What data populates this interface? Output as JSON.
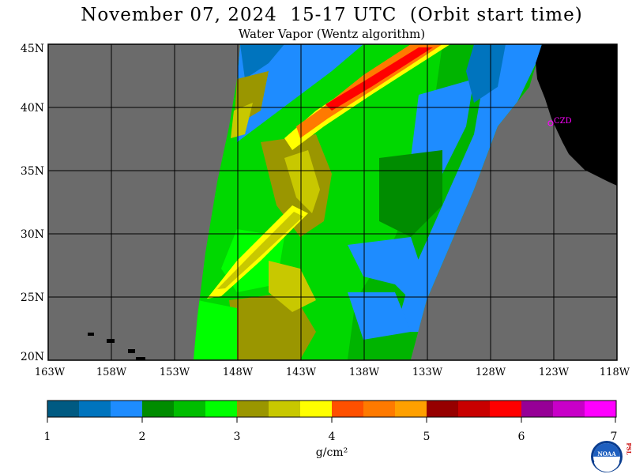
{
  "header": {
    "title": "November 07, 2024  15-17 UTC  (Orbit start time)",
    "subtitle": "Water Vapor (Wentz algorithm)"
  },
  "map": {
    "lat_labels": [
      "45N",
      "40N",
      "35N",
      "30N",
      "25N",
      "20N"
    ],
    "lon_labels": [
      "163W",
      "158W",
      "153W",
      "148W",
      "143W",
      "138W",
      "133W",
      "128W",
      "123W",
      "118W"
    ],
    "station_label": "CZD",
    "colors": {
      "no_data": "#6b6b6b",
      "land": "#000000",
      "grid": "#000000",
      "station": "#ff00ff"
    }
  },
  "colorbar": {
    "tick_labels": [
      "1",
      "2",
      "3",
      "4",
      "5",
      "6",
      "7"
    ],
    "unit_label": "g/cm²",
    "colors": [
      "#005a82",
      "#0074be",
      "#1e8cff",
      "#008c00",
      "#00be00",
      "#00ff00",
      "#9a9600",
      "#c8c800",
      "#ffff00",
      "#ff5000",
      "#ff7a00",
      "#ffa000",
      "#960000",
      "#c80000",
      "#ff0000",
      "#960096",
      "#c800c8",
      "#ff00ff"
    ]
  },
  "logo": {
    "noaa_text": "NOAA",
    "psl_text": "PSL"
  }
}
